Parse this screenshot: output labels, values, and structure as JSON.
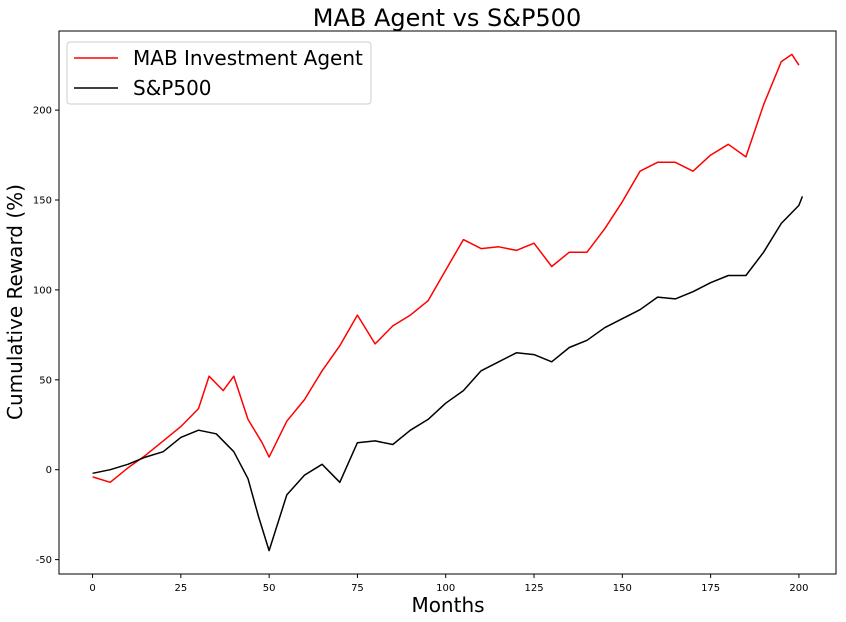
{
  "chart_data": {
    "type": "line",
    "title": "MAB Agent vs S&P500",
    "xlabel": "Months",
    "ylabel": "Cumulative Reward (%)",
    "xlim": [
      -9.5,
      210.5
    ],
    "ylim": [
      -58,
      244
    ],
    "x_ticks": [
      0,
      25,
      50,
      75,
      100,
      125,
      150,
      175,
      200
    ],
    "y_ticks": [
      -50,
      0,
      50,
      100,
      150,
      200
    ],
    "grid": false,
    "legend_position": "upper-left",
    "series": [
      {
        "name": "MAB Investment Agent",
        "color": "#ff0000",
        "x": [
          0,
          5,
          10,
          15,
          20,
          25,
          30,
          33,
          37,
          40,
          44,
          48,
          50,
          55,
          60,
          65,
          70,
          75,
          80,
          85,
          90,
          95,
          100,
          105,
          110,
          115,
          120,
          125,
          130,
          135,
          140,
          145,
          150,
          155,
          160,
          165,
          170,
          175,
          180,
          185,
          190,
          195,
          198,
          200
        ],
        "values": [
          -4,
          -7,
          1,
          8,
          16,
          24,
          34,
          52,
          44,
          52,
          28,
          15,
          7,
          27,
          39,
          55,
          69,
          86,
          70,
          80,
          86,
          94,
          111,
          128,
          123,
          124,
          122,
          126,
          113,
          121,
          121,
          134,
          149,
          166,
          171,
          171,
          166,
          175,
          181,
          174,
          203,
          227,
          231,
          225
        ],
        "line_style": "solid"
      },
      {
        "name": "S&P500",
        "color": "#000000",
        "x": [
          0,
          5,
          10,
          15,
          20,
          25,
          30,
          35,
          40,
          44,
          47,
          50,
          55,
          60,
          65,
          70,
          75,
          80,
          85,
          90,
          95,
          100,
          105,
          110,
          115,
          120,
          125,
          130,
          135,
          140,
          145,
          150,
          155,
          160,
          165,
          170,
          175,
          180,
          185,
          190,
          195,
          200,
          201
        ],
        "values": [
          -2,
          0,
          3,
          7,
          10,
          18,
          22,
          20,
          10,
          -5,
          -26,
          -45,
          -14,
          -3,
          3,
          -7,
          15,
          16,
          14,
          22,
          28,
          37,
          44,
          55,
          60,
          65,
          64,
          60,
          68,
          72,
          79,
          84,
          89,
          96,
          95,
          99,
          104,
          108,
          108,
          121,
          137,
          147,
          152
        ],
        "line_style": "solid"
      }
    ]
  }
}
